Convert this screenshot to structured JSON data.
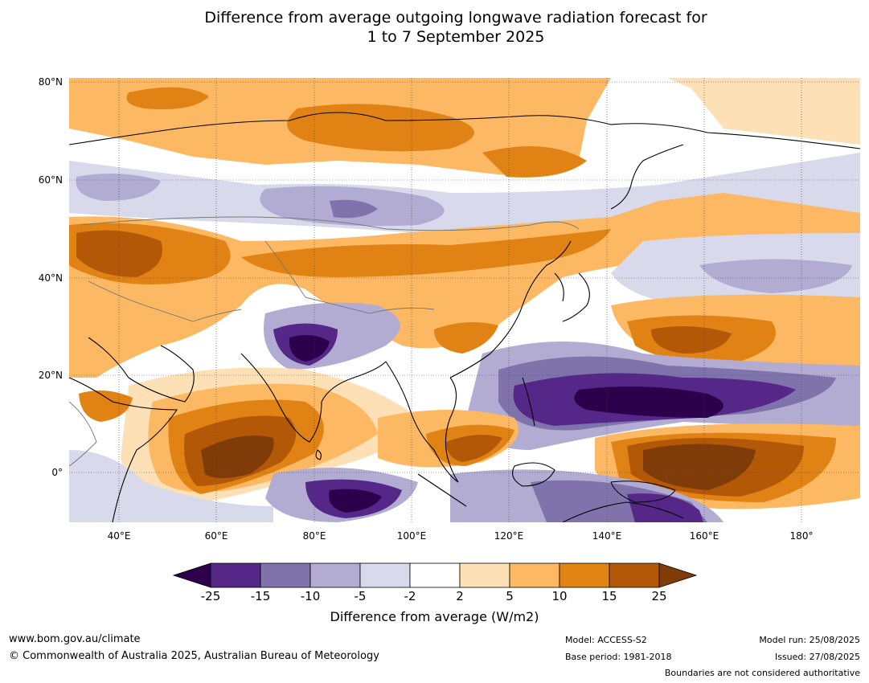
{
  "title": {
    "line1": "Difference from average outgoing longwave radiation forecast for",
    "line2": "1 to 7 September 2025"
  },
  "map": {
    "lat_ticks": [
      "80°N",
      "60°N",
      "40°N",
      "20°N",
      "0°"
    ],
    "lon_ticks": [
      "40°E",
      "60°E",
      "80°E",
      "100°E",
      "120°E",
      "140°E",
      "160°E",
      "180°"
    ],
    "extent": {
      "lon": [
        30,
        192
      ],
      "lat": [
        -10,
        81
      ]
    },
    "anomalies": [
      {
        "lon": 65,
        "lat": 2,
        "category": "15 to 25"
      },
      {
        "lon": 82,
        "lat": 8,
        "category": "15 to 25"
      },
      {
        "lon": 162,
        "lat": 3,
        "category": "15 to 25"
      },
      {
        "lon": 157,
        "lat": 24,
        "category": "10 to 15"
      },
      {
        "lon": 45,
        "lat": 45,
        "category": "10 to 15"
      },
      {
        "lon": 96,
        "lat": 71,
        "category": "10 to 15"
      },
      {
        "lon": 112,
        "lat": 4,
        "category": "10 to 15"
      },
      {
        "lon": 80,
        "lat": 25,
        "category": "-25 to -15"
      },
      {
        "lon": 154,
        "lat": 15,
        "category": "-25 to -15"
      },
      {
        "lon": 90,
        "lat": -5,
        "category": "-25 to -15"
      },
      {
        "lon": 85,
        "lat": 56,
        "category": "-10 to -5"
      },
      {
        "lon": 160,
        "lat": 38,
        "category": "-10 to -5"
      }
    ]
  },
  "colorbar": {
    "colors": [
      "#2d004b",
      "#542788",
      "#8073ac",
      "#b2abd2",
      "#d8daeb",
      "#ffffff",
      "#fee0b6",
      "#fdb863",
      "#e08214",
      "#b35806",
      "#7f3b08"
    ],
    "ticks": [
      "-25",
      "-15",
      "-10",
      "-5",
      "-2",
      "2",
      "5",
      "10",
      "15",
      "25"
    ],
    "label": "Difference from average (W/m2)"
  },
  "footer": {
    "url": "www.bom.gov.au/climate",
    "copyright": "© Commonwealth of Australia 2025, Australian Bureau of Meteorology",
    "model": "Model: ACCESS-S2",
    "base_period": "Base period: 1981-2018",
    "model_run": "Model run: 25/08/2025",
    "issued": "Issued: 27/08/2025",
    "disclaimer": "Boundaries are not considered authoritative"
  }
}
